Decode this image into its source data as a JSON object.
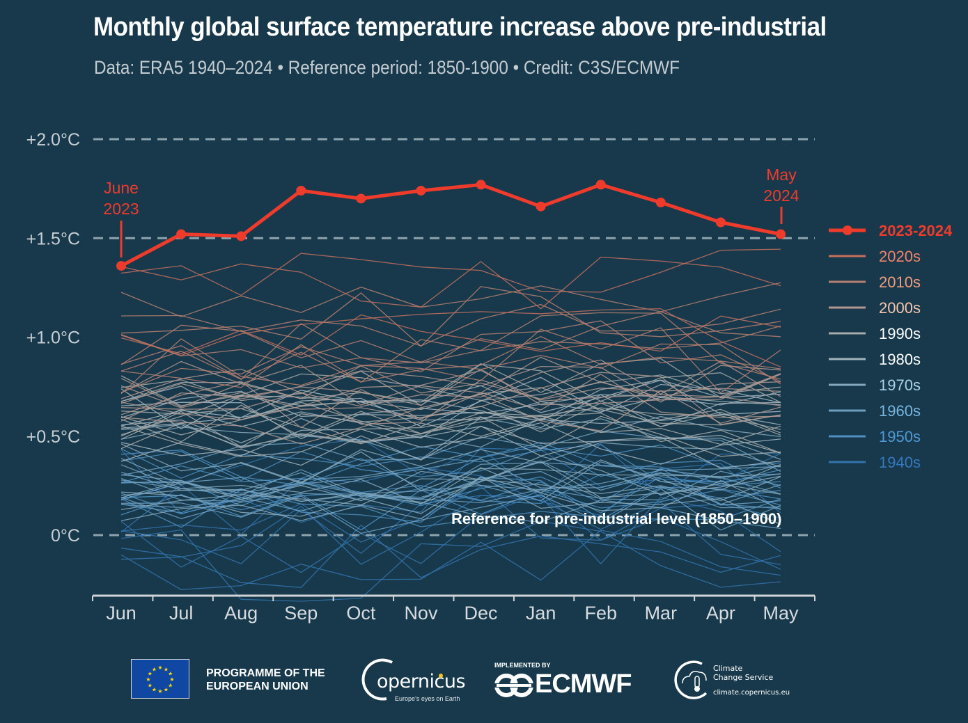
{
  "header": {
    "title": "Monthly global surface temperature increase above pre-industrial",
    "subtitle": "Data: ERA5 1940–2024 • Reference period: 1850-1900 • Credit: C3S/ECMWF"
  },
  "chart_data": {
    "type": "line",
    "title": "Monthly global surface temperature increase above pre-industrial",
    "subtitle": "Data: ERA5 1940–2024 • Reference period: 1850-1900 • Credit: C3S/ECMWF",
    "xlabel": "",
    "ylabel": "",
    "x": [
      "Jun",
      "Jul",
      "Aug",
      "Sep",
      "Oct",
      "Nov",
      "Dec",
      "Jan",
      "Feb",
      "Mar",
      "Apr",
      "May"
    ],
    "ylim": [
      -0.3,
      2.05
    ],
    "yticks": [
      0,
      0.5,
      1.0,
      1.5,
      2.0
    ],
    "ytick_labels": [
      "0°C",
      "+0.5°C",
      "+1.0°C",
      "+1.5°C",
      "+2.0°C"
    ],
    "grid": "dashed horizontal lines at 0, +1.5 and +2.0°C",
    "legend_position": "right",
    "highlight_series": {
      "name": "2023-2024",
      "color": "#ef3b2c",
      "values": [
        1.36,
        1.52,
        1.51,
        1.74,
        1.7,
        1.74,
        1.77,
        1.66,
        1.77,
        1.68,
        1.58,
        1.52
      ]
    },
    "decade_groups": [
      {
        "name": "2020s",
        "color": "#c5705f",
        "label_color": "#f2826a",
        "approx_range": [
          0.95,
          1.45
        ]
      },
      {
        "name": "2010s",
        "color": "#b98071",
        "label_color": "#f39c80",
        "approx_range": [
          0.75,
          1.3
        ]
      },
      {
        "name": "2000s",
        "color": "#b39890",
        "label_color": "#f6c7ae",
        "approx_range": [
          0.55,
          1.0
        ]
      },
      {
        "name": "1990s",
        "color": "#a8aaa9",
        "label_color": "#ffffff",
        "approx_range": [
          0.45,
          0.85
        ]
      },
      {
        "name": "1980s",
        "color": "#a3b4bd",
        "label_color": "#ffffff",
        "approx_range": [
          0.35,
          0.75
        ]
      },
      {
        "name": "1970s",
        "color": "#86a8bc",
        "label_color": "#a9d3ea",
        "approx_range": [
          0.15,
          0.55
        ]
      },
      {
        "name": "1960s",
        "color": "#6ea0c2",
        "label_color": "#76b6e0",
        "approx_range": [
          0.1,
          0.5
        ]
      },
      {
        "name": "1950s",
        "color": "#4f8fc1",
        "label_color": "#4f9ad6",
        "approx_range": [
          0.05,
          0.45
        ]
      },
      {
        "name": "1940s",
        "color": "#3473ad",
        "label_color": "#3479bf",
        "approx_range": [
          -0.2,
          0.5
        ]
      }
    ],
    "decade_lines_note": "Individual year lines per decade are illustrative (not individually legible)",
    "annotations": [
      {
        "text": "June 2023",
        "month": "Jun",
        "value": 1.36
      },
      {
        "text": "May 2024",
        "month": "May",
        "value": 1.52
      },
      {
        "text": "Reference for pre-industrial level (1850–1900)",
        "value": 0
      }
    ]
  },
  "annotations": {
    "start_line1": "June",
    "start_line2": "2023",
    "end_line1": "May",
    "end_line2": "2024",
    "reference": "Reference for pre-industrial level (1850–1900)"
  },
  "footer": {
    "eu_line1": "PROGRAMME OF THE",
    "eu_line2": "EUROPEAN UNION",
    "copernicus_name": "opernicus",
    "copernicus_tagline": "Europe’s eyes on Earth",
    "ecmwf_by": "IMPLEMENTED BY",
    "ecmwf_name": "ECMWF",
    "c3s_line1": "Climate",
    "c3s_line2": "Change Service",
    "c3s_url": "climate.copernicus.eu"
  }
}
